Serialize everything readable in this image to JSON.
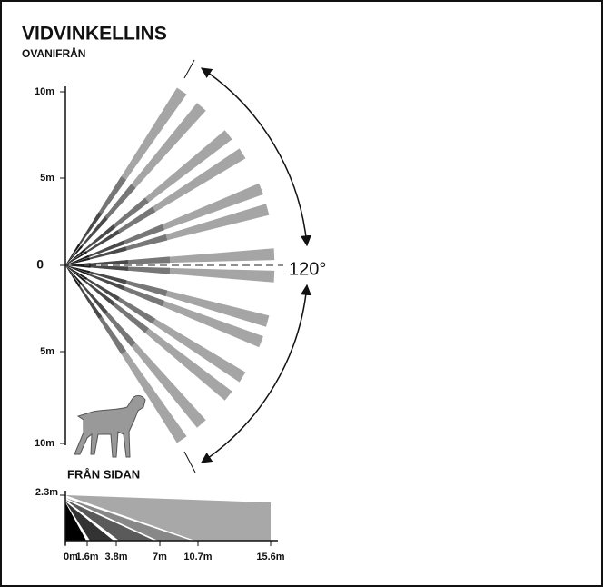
{
  "title": "VIDVINKELLINS",
  "top_view": {
    "title": "OVANIFRÅN",
    "y_labels": [
      "10m",
      "5m",
      "0",
      "5m",
      "10m"
    ],
    "angle_label": "120°"
  },
  "side_view": {
    "title": "FRÅN SIDAN",
    "height_label": "2.3m",
    "x_labels": [
      "0m",
      "1.6m",
      "3.8m",
      "7m",
      "10.7m",
      "15.6m"
    ]
  }
}
